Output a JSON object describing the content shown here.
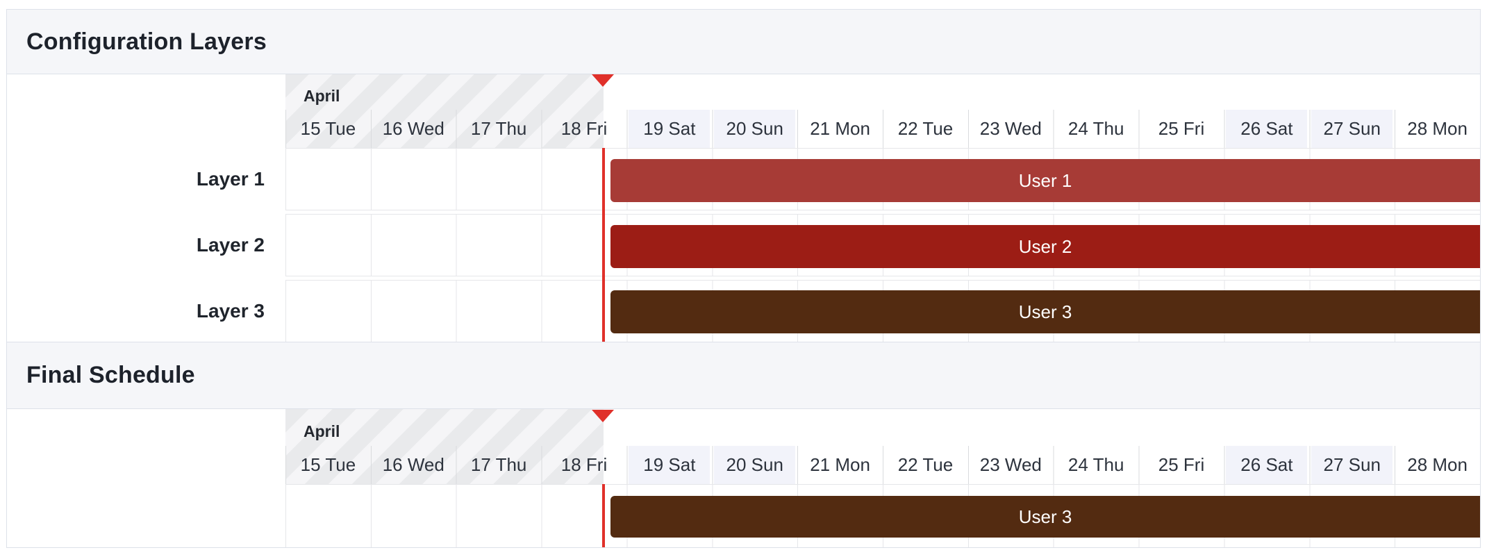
{
  "timeline": {
    "month_label": "April",
    "days": [
      {
        "label": "15 Tue",
        "weekend": false
      },
      {
        "label": "16 Wed",
        "weekend": false
      },
      {
        "label": "17 Thu",
        "weekend": false
      },
      {
        "label": "18 Fri",
        "weekend": false
      },
      {
        "label": "19 Sat",
        "weekend": true
      },
      {
        "label": "20 Sun",
        "weekend": true
      },
      {
        "label": "21 Mon",
        "weekend": false
      },
      {
        "label": "22 Tue",
        "weekend": false
      },
      {
        "label": "23 Wed",
        "weekend": false
      },
      {
        "label": "24 Thu",
        "weekend": false
      },
      {
        "label": "25 Fri",
        "weekend": false
      },
      {
        "label": "26 Sat",
        "weekend": true
      },
      {
        "label": "27 Sun",
        "weekend": true
      },
      {
        "label": "28 Mon",
        "weekend": false
      }
    ]
  },
  "sections": {
    "configuration": {
      "title": "Configuration Layers",
      "rows": [
        {
          "label": "Layer 1",
          "bar": {
            "label": "User 1",
            "color": "#a73b36"
          }
        },
        {
          "label": "Layer 2",
          "bar": {
            "label": "User 2",
            "color": "#9c1d15"
          }
        },
        {
          "label": "Layer 3",
          "bar": {
            "label": "User 3",
            "color": "#532b11"
          }
        }
      ]
    },
    "final": {
      "title": "Final Schedule",
      "rows": [
        {
          "bar": {
            "label": "User 3",
            "color": "#532b11"
          }
        }
      ]
    }
  },
  "now_marker": {
    "color": "#e0302a"
  },
  "colors": {
    "panel_border": "#dde1e9",
    "section_header_bg": "#f5f6f9",
    "title_text": "#1d222b",
    "day_text": "#2d333d",
    "row_label_text": "#1f242c",
    "grid_line": "#e5e6e9",
    "day_separator": "#d9dbde",
    "weekend_tint": "#f2f3fa",
    "past_stripe_dark": "#e9eaec",
    "past_stripe_light": "#f5f5f7",
    "bar_text": "#ffffff"
  }
}
